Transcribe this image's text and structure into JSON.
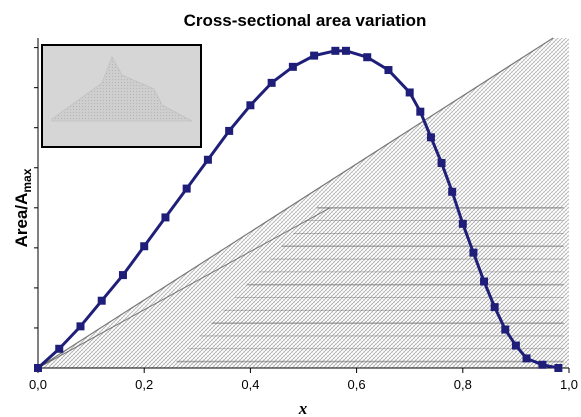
{
  "colors": {
    "series_line": "#1f1f7a",
    "marker": "#1f1f7a",
    "axis": "#000000",
    "background_texture": "#6e6e6e",
    "inset_fill": "#d6d6d6",
    "inset_border": "#000000"
  },
  "chart_data": {
    "type": "line",
    "title": "Cross-sectional area variation",
    "xlabel": "x",
    "ylabel": {
      "main": "Area/A",
      "subscript": "max"
    },
    "xlim": [
      0,
      1
    ],
    "ylim": [
      0,
      1.03
    ],
    "x_tick_labels": [
      "0,0",
      "0,2",
      "0,4",
      "0,6",
      "0,8",
      "1,0"
    ],
    "x_ticks": [
      0,
      0.2,
      0.4,
      0.6,
      0.8,
      1.0
    ],
    "y_ticks_unlabeled": [
      0.125,
      0.25,
      0.375,
      0.5,
      0.625,
      0.75,
      0.875,
      1.0
    ],
    "grid": false,
    "legend": "none",
    "inset_image": "top-left",
    "series": [
      {
        "marker": "square",
        "x": [
          0.0,
          0.04,
          0.08,
          0.12,
          0.16,
          0.2,
          0.24,
          0.28,
          0.32,
          0.36,
          0.4,
          0.44,
          0.48,
          0.52,
          0.56,
          0.58,
          0.62,
          0.66,
          0.7,
          0.72,
          0.74,
          0.76,
          0.78,
          0.8,
          0.82,
          0.84,
          0.86,
          0.88,
          0.9,
          0.92,
          0.95,
          0.98
        ],
        "values": [
          0.0,
          0.06,
          0.13,
          0.21,
          0.29,
          0.38,
          0.47,
          0.56,
          0.65,
          0.74,
          0.82,
          0.89,
          0.94,
          0.975,
          0.99,
          0.99,
          0.97,
          0.93,
          0.86,
          0.8,
          0.72,
          0.64,
          0.55,
          0.45,
          0.36,
          0.27,
          0.19,
          0.12,
          0.07,
          0.03,
          0.01,
          0.0
        ]
      }
    ]
  }
}
